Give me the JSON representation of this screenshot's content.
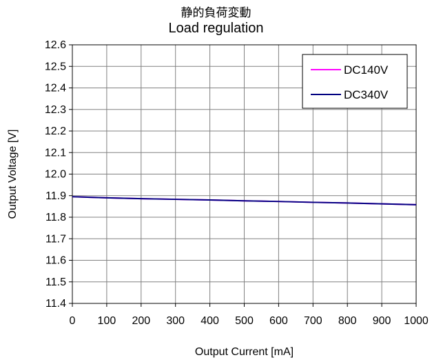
{
  "chart_data": {
    "type": "line",
    "title": "静的負荷変動",
    "subtitle": "Load regulation",
    "xlabel": "Output Current [mA]",
    "ylabel": "Output Voltage [V]",
    "xlim": [
      0,
      1000
    ],
    "ylim": [
      11.4,
      12.6
    ],
    "xticks": [
      0,
      100,
      200,
      300,
      400,
      500,
      600,
      700,
      800,
      900,
      1000
    ],
    "yticks": [
      "11.4",
      "11.5",
      "11.6",
      "11.7",
      "11.8",
      "11.9",
      "12.0",
      "12.1",
      "12.2",
      "12.3",
      "12.4",
      "12.5",
      "12.6"
    ],
    "grid": true,
    "legend_position": "top-right",
    "series": [
      {
        "name": "DC140V",
        "color": "#ff00ff",
        "x": [
          0,
          100,
          200,
          300,
          400,
          500,
          600,
          700,
          800,
          900,
          1000
        ],
        "y": [
          11.895,
          11.89,
          11.886,
          11.883,
          11.88,
          11.876,
          11.873,
          11.869,
          11.866,
          11.862,
          11.858
        ]
      },
      {
        "name": "DC340V",
        "color": "#000080",
        "x": [
          0,
          100,
          200,
          300,
          400,
          500,
          600,
          700,
          800,
          900,
          1000
        ],
        "y": [
          11.895,
          11.89,
          11.886,
          11.883,
          11.88,
          11.876,
          11.873,
          11.869,
          11.866,
          11.862,
          11.858
        ]
      }
    ]
  }
}
